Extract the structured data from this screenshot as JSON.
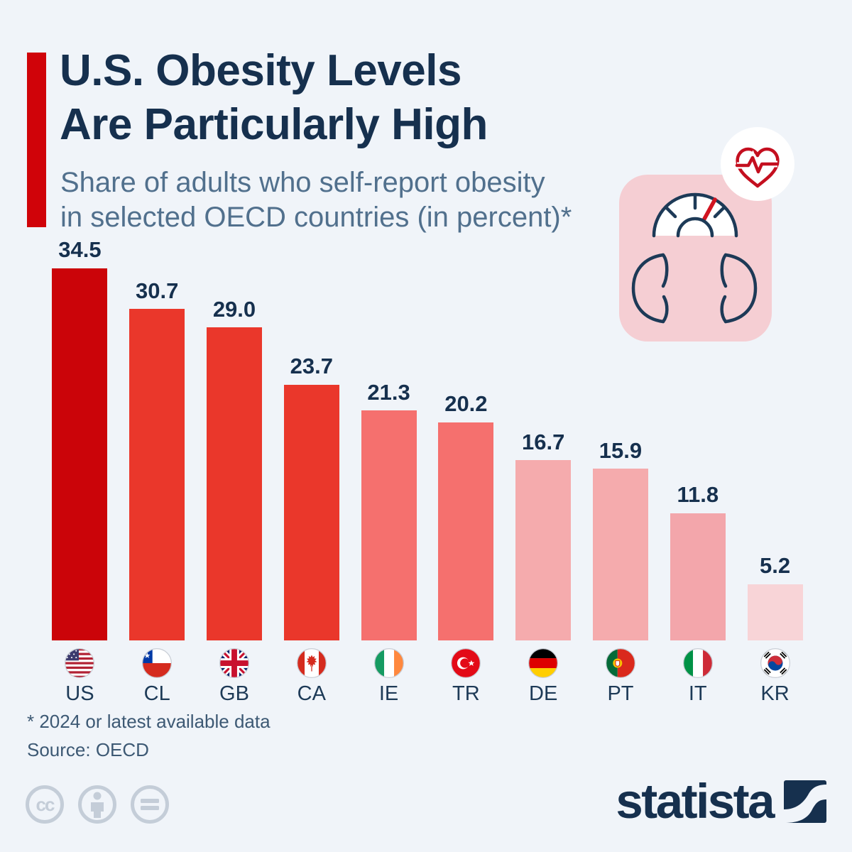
{
  "page": {
    "background_color": "#f0f4f9"
  },
  "header": {
    "accent_color": "#d00309",
    "title_line1": "U.S. Obesity Levels",
    "title_line2": "Are Particularly High",
    "title_color": "#16304e",
    "subtitle_line1": "Share of adults who self-report obesity",
    "subtitle_line2": "in selected OECD countries (in percent)*",
    "subtitle_color": "#51708d"
  },
  "illustration": {
    "name": "bathroom-scale-with-heart-pulse",
    "square_color": "#f5ced3",
    "line_color": "#1d3a57",
    "heart_color": "#c40f1f",
    "needle_color": "#d11420",
    "badge_color": "#ffffff"
  },
  "chart_data": {
    "type": "bar",
    "title": "U.S. Obesity Levels Are Particularly High",
    "subtitle": "Share of adults who self-report obesity in selected OECD countries (in percent)*",
    "categories": [
      "US",
      "CL",
      "GB",
      "CA",
      "IE",
      "TR",
      "DE",
      "PT",
      "IT",
      "KR"
    ],
    "values": [
      34.5,
      30.7,
      29.0,
      23.7,
      21.3,
      20.2,
      16.7,
      15.9,
      11.8,
      5.2
    ],
    "value_labels": [
      "34.5",
      "30.7",
      "29.0",
      "23.7",
      "21.3",
      "20.2",
      "16.7",
      "15.9",
      "11.8",
      "5.2"
    ],
    "bar_colors": [
      "#cb0409",
      "#ea372b",
      "#ea372b",
      "#ea372b",
      "#f5706e",
      "#f5706e",
      "#f5abad",
      "#f5abad",
      "#f3a6ab",
      "#f8d4d7"
    ],
    "flag_icons": [
      "us-flag-icon",
      "cl-flag-icon",
      "gb-flag-icon",
      "ca-flag-icon",
      "ie-flag-icon",
      "tr-flag-icon",
      "de-flag-icon",
      "pt-flag-icon",
      "it-flag-icon",
      "kr-flag-icon"
    ],
    "label_color": "#16304e",
    "xlabel": "",
    "ylabel": "",
    "ylim": [
      0,
      36.5
    ],
    "grid": false,
    "legend": "none"
  },
  "footer": {
    "footnote": "* 2024 or latest available data",
    "source": "Source: OECD",
    "text_color": "#3d5974",
    "license_icons": [
      "cc-icon",
      "by-attribution-icon",
      "nd-no-derivatives-icon"
    ],
    "license_color": "#c4cdd8",
    "brand": "statista",
    "brand_color": "#16304e"
  }
}
